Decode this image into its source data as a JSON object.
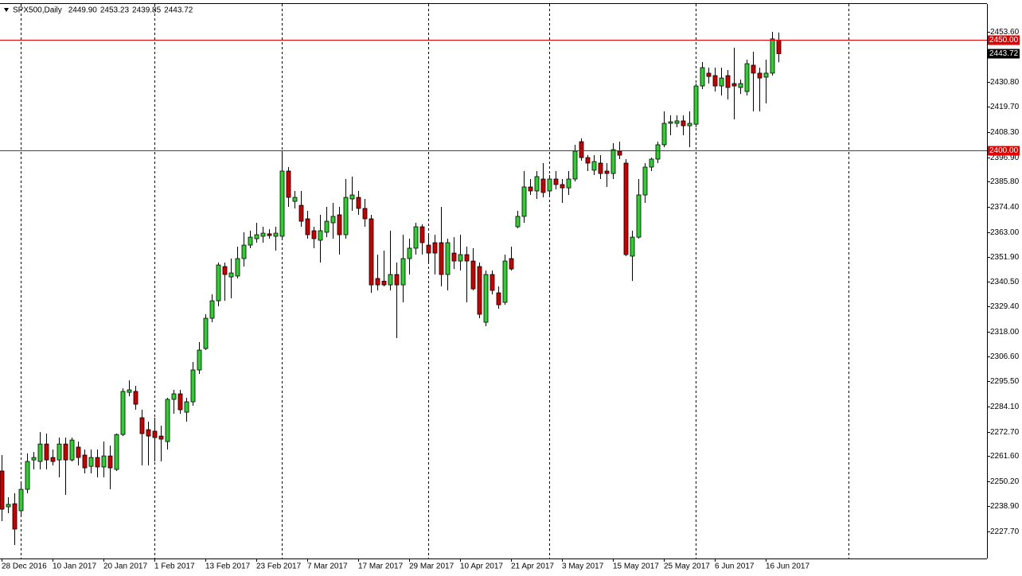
{
  "chart_data": {
    "type": "candlestick",
    "title": "SPX500,Daily",
    "last_labels": [
      "2449.90",
      "2453.23",
      "2439.85",
      "2443.72"
    ],
    "up_color": "#32cd32",
    "down_color": "#c80000",
    "hline_color": "#e00000",
    "hlines": [
      {
        "value": 2450,
        "label": "2450.00"
      },
      {
        "value": 2400,
        "label": "2400.00"
      }
    ],
    "ylim": [
      2215.3,
      2466.2
    ],
    "yticks": [
      {
        "value": 2453.6,
        "label": "2453.60"
      },
      {
        "value": 2442.7,
        "label": "2442.70"
      },
      {
        "value": 2430.8,
        "label": "2430.80"
      },
      {
        "value": 2419.7,
        "label": "2419.70"
      },
      {
        "value": 2408.3,
        "label": "2408.30"
      },
      {
        "value": 2396.9,
        "label": "2396.90"
      },
      {
        "value": 2385.8,
        "label": "2385.80"
      },
      {
        "value": 2374.4,
        "label": "2374.40"
      },
      {
        "value": 2363,
        "label": "2363.00"
      },
      {
        "value": 2351.9,
        "label": "2351.90"
      },
      {
        "value": 2340.5,
        "label": "2340.50"
      },
      {
        "value": 2329.4,
        "label": "2329.40"
      },
      {
        "value": 2318,
        "label": "2318.00"
      },
      {
        "value": 2306.6,
        "label": "2306.60"
      },
      {
        "value": 2295.5,
        "label": "2295.50"
      },
      {
        "value": 2284.1,
        "label": "2284.10"
      },
      {
        "value": 2272.7,
        "label": "2272.70"
      },
      {
        "value": 2261.6,
        "label": "2261.60"
      },
      {
        "value": 2250.2,
        "label": "2250.20"
      },
      {
        "value": 2238.9,
        "label": "2238.90"
      },
      {
        "value": 2227.7,
        "label": "2227.70"
      }
    ],
    "categories": [
      "28 Dec 2016",
      null,
      null,
      null,
      null,
      null,
      null,
      null,
      "10 Jan 2017",
      null,
      null,
      null,
      null,
      null,
      null,
      null,
      "20 Jan 2017",
      null,
      null,
      null,
      null,
      null,
      null,
      null,
      "1 Feb 2017",
      null,
      null,
      null,
      null,
      null,
      null,
      null,
      "13 Feb 2017",
      null,
      null,
      null,
      null,
      null,
      null,
      null,
      "23 Feb 2017",
      null,
      null,
      null,
      null,
      null,
      null,
      null,
      "7 Mar 2017",
      null,
      null,
      null,
      null,
      null,
      null,
      null,
      "17 Mar 2017",
      null,
      null,
      null,
      null,
      null,
      null,
      null,
      "29 Mar 2017",
      null,
      null,
      null,
      null,
      null,
      null,
      null,
      "10 Apr 2017",
      null,
      null,
      null,
      null,
      null,
      null,
      null,
      "21 Apr 2017",
      null,
      null,
      null,
      null,
      null,
      null,
      null,
      "3 May 2017",
      null,
      null,
      null,
      null,
      null,
      null,
      null,
      "15 May 2017",
      null,
      null,
      null,
      null,
      null,
      null,
      null,
      "25 May 2017",
      null,
      null,
      null,
      null,
      null,
      null,
      null,
      "6 Jun 2017",
      null,
      null,
      null,
      null,
      null,
      null,
      null,
      "16 Jun 2017",
      null,
      null
    ],
    "ohlc": [
      [
        2254.9,
        2262.1,
        2232.2,
        2237.6
      ],
      [
        2238.7,
        2243.0,
        2235.8,
        2239.8
      ],
      [
        2240.1,
        2244.8,
        2221.4,
        2228.6
      ],
      [
        2236.9,
        2250.2,
        2234.7,
        2246.6
      ],
      [
        2246.6,
        2262.8,
        2244.8,
        2259.2
      ],
      [
        2259.9,
        2263.5,
        2255.6,
        2261.0
      ],
      [
        2259.2,
        2272.5,
        2255.6,
        2267.1
      ],
      [
        2267.1,
        2271.8,
        2255.6,
        2259.9
      ],
      [
        2261.0,
        2264.6,
        2257.4,
        2259.2
      ],
      [
        2259.9,
        2270.0,
        2252.0,
        2267.1
      ],
      [
        2267.1,
        2270.0,
        2244.1,
        2259.9
      ],
      [
        2259.9,
        2270.0,
        2259.2,
        2268.9
      ],
      [
        2265.7,
        2268.2,
        2257.4,
        2261.0
      ],
      [
        2262.1,
        2264.6,
        2253.8,
        2256.3
      ],
      [
        2257.0,
        2264.6,
        2253.8,
        2261.0
      ],
      [
        2261.0,
        2264.6,
        2252.0,
        2256.7
      ],
      [
        2256.7,
        2268.2,
        2252.0,
        2261.7
      ],
      [
        2261.7,
        2266.4,
        2246.6,
        2256.3
      ],
      [
        2255.6,
        2271.8,
        2254.9,
        2271.4
      ],
      [
        2271.4,
        2292.3,
        2270.7,
        2290.9
      ],
      [
        2290.5,
        2295.9,
        2288.7,
        2291.6
      ],
      [
        2290.9,
        2293.4,
        2282.6,
        2285.1
      ],
      [
        2279.0,
        2282.6,
        2257.4,
        2271.8
      ],
      [
        2273.6,
        2277.2,
        2257.4,
        2270.7
      ],
      [
        2272.9,
        2279.0,
        2259.2,
        2270.0
      ],
      [
        2270.7,
        2275.4,
        2259.2,
        2269.3
      ],
      [
        2268.2,
        2288.0,
        2264.6,
        2287.3
      ],
      [
        2287.3,
        2291.6,
        2280.8,
        2289.8
      ],
      [
        2289.8,
        2291.6,
        2280.8,
        2282.6
      ],
      [
        2281.5,
        2288.0,
        2277.2,
        2286.2
      ],
      [
        2286.2,
        2304.2,
        2284.4,
        2300.6
      ],
      [
        2300.6,
        2313.2,
        2298.8,
        2309.6
      ],
      [
        2310.3,
        2325.8,
        2309.6,
        2324.0
      ],
      [
        2324.0,
        2334.8,
        2322.2,
        2331.9
      ],
      [
        2331.9,
        2349.2,
        2329.4,
        2348.1
      ],
      [
        2347.4,
        2349.2,
        2331.9,
        2343.8
      ],
      [
        2342.7,
        2351.0,
        2333.0,
        2344.5
      ],
      [
        2343.1,
        2356.4,
        2342.0,
        2351.0
      ],
      [
        2351.0,
        2362.9,
        2347.4,
        2357.1
      ],
      [
        2357.1,
        2363.6,
        2355.7,
        2360.7
      ],
      [
        2360.0,
        2367.2,
        2358.2,
        2361.8
      ],
      [
        2361.1,
        2365.4,
        2358.2,
        2362.5
      ],
      [
        2362.2,
        2364.3,
        2360.0,
        2361.4
      ],
      [
        2361.1,
        2365.4,
        2354.6,
        2362.5
      ],
      [
        2361.1,
        2399.6,
        2360.0,
        2390.6
      ],
      [
        2390.6,
        2392.4,
        2374.4,
        2378.7
      ],
      [
        2376.9,
        2381.6,
        2373.7,
        2378.7
      ],
      [
        2375.1,
        2381.6,
        2365.4,
        2367.9
      ],
      [
        2369.0,
        2372.6,
        2360.0,
        2361.8
      ],
      [
        2363.6,
        2365.4,
        2355.7,
        2360.0
      ],
      [
        2359.3,
        2370.8,
        2349.2,
        2363.6
      ],
      [
        2362.9,
        2374.4,
        2360.7,
        2367.9
      ],
      [
        2367.2,
        2376.2,
        2360.0,
        2370.1
      ],
      [
        2370.8,
        2374.4,
        2352.8,
        2361.8
      ],
      [
        2361.8,
        2387.0,
        2360.0,
        2378.7
      ],
      [
        2378.0,
        2388.1,
        2372.6,
        2379.8
      ],
      [
        2378.7,
        2381.6,
        2370.8,
        2373.7
      ],
      [
        2373.7,
        2378.0,
        2365.4,
        2369.0
      ],
      [
        2369.0,
        2370.8,
        2335.5,
        2339.1
      ],
      [
        2342.0,
        2352.8,
        2336.6,
        2339.1
      ],
      [
        2340.8,
        2354.6,
        2338.4,
        2339.1
      ],
      [
        2339.1,
        2363.6,
        2336.6,
        2343.8
      ],
      [
        2343.8,
        2349.2,
        2315.0,
        2339.1
      ],
      [
        2339.1,
        2361.8,
        2331.2,
        2351.0
      ],
      [
        2351.0,
        2360.0,
        2343.8,
        2355.7
      ],
      [
        2355.7,
        2367.2,
        2352.8,
        2365.4
      ],
      [
        2365.4,
        2366.5,
        2352.8,
        2358.2
      ],
      [
        2357.1,
        2361.8,
        2349.2,
        2353.5
      ],
      [
        2358.2,
        2361.8,
        2343.8,
        2353.5
      ],
      [
        2358.2,
        2374.4,
        2338.4,
        2343.8
      ],
      [
        2343.8,
        2360.0,
        2336.6,
        2358.2
      ],
      [
        2353.5,
        2360.7,
        2346.3,
        2349.9
      ],
      [
        2349.9,
        2361.8,
        2345.6,
        2352.8
      ],
      [
        2352.8,
        2356.4,
        2331.2,
        2349.9
      ],
      [
        2349.9,
        2355.7,
        2336.6,
        2337.3
      ],
      [
        2347.4,
        2349.2,
        2324.0,
        2325.8
      ],
      [
        2322.2,
        2345.6,
        2320.4,
        2343.8
      ],
      [
        2343.8,
        2345.6,
        2334.8,
        2336.6
      ],
      [
        2335.5,
        2338.4,
        2328.3,
        2330.1
      ],
      [
        2331.2,
        2352.8,
        2330.1,
        2349.9
      ],
      [
        2351.0,
        2356.4,
        2345.6,
        2346.3
      ],
      [
        2365.4,
        2372.6,
        2364.7,
        2370.1
      ],
      [
        2370.1,
        2390.6,
        2367.2,
        2383.4
      ],
      [
        2383.4,
        2387.0,
        2379.8,
        2381.6
      ],
      [
        2381.6,
        2390.6,
        2378.0,
        2388.1
      ],
      [
        2387.0,
        2394.2,
        2378.7,
        2380.9
      ],
      [
        2381.6,
        2388.8,
        2379.8,
        2387.0
      ],
      [
        2387.0,
        2390.6,
        2382.3,
        2384.5
      ],
      [
        2384.5,
        2387.0,
        2376.2,
        2383.0
      ],
      [
        2383.0,
        2390.6,
        2379.8,
        2387.0
      ],
      [
        2387.0,
        2402.5,
        2385.9,
        2399.6
      ],
      [
        2403.9,
        2405.4,
        2395.3,
        2396.7
      ],
      [
        2396.7,
        2397.8,
        2390.6,
        2394.2
      ],
      [
        2391.0,
        2397.8,
        2388.8,
        2394.9
      ],
      [
        2394.2,
        2397.8,
        2387.0,
        2389.5
      ],
      [
        2390.6,
        2394.2,
        2383.4,
        2389.5
      ],
      [
        2389.5,
        2403.2,
        2387.0,
        2400.3
      ],
      [
        2399.6,
        2403.9,
        2396.0,
        2397.8
      ],
      [
        2394.2,
        2396.0,
        2352.1,
        2352.8
      ],
      [
        2352.1,
        2363.6,
        2340.9,
        2360.7
      ],
      [
        2360.7,
        2387.0,
        2360.0,
        2379.8
      ],
      [
        2379.8,
        2394.2,
        2376.2,
        2392.4
      ],
      [
        2392.4,
        2396.7,
        2390.6,
        2396.0
      ],
      [
        2396.0,
        2403.9,
        2394.2,
        2402.5
      ],
      [
        2402.5,
        2417.6,
        2401.4,
        2412.2
      ],
      [
        2412.2,
        2415.8,
        2406.8,
        2412.9
      ],
      [
        2412.2,
        2415.8,
        2410.4,
        2413.3
      ],
      [
        2413.3,
        2415.8,
        2406.8,
        2411.1
      ],
      [
        2411.1,
        2417.6,
        2401.4,
        2412.2
      ],
      [
        2411.8,
        2430.2,
        2410.4,
        2429.1
      ],
      [
        2429.1,
        2439.9,
        2427.7,
        2437.4
      ],
      [
        2434.9,
        2437.4,
        2430.2,
        2433.4
      ],
      [
        2433.8,
        2437.4,
        2426.6,
        2429.1
      ],
      [
        2429.1,
        2437.4,
        2424.8,
        2432.7
      ],
      [
        2433.8,
        2436.3,
        2423.0,
        2428.4
      ],
      [
        2430.2,
        2446.4,
        2414.0,
        2429.1
      ],
      [
        2428.4,
        2432.0,
        2425.5,
        2430.2
      ],
      [
        2426.6,
        2441.0,
        2424.8,
        2439.2
      ],
      [
        2438.5,
        2444.6,
        2417.6,
        2434.9
      ],
      [
        2434.9,
        2437.4,
        2417.6,
        2432.7
      ],
      [
        2433.1,
        2441.0,
        2421.2,
        2434.9
      ],
      [
        2434.9,
        2453.6,
        2433.8,
        2450.4
      ],
      [
        2449.9,
        2453.23,
        2439.85,
        2443.72
      ]
    ]
  }
}
